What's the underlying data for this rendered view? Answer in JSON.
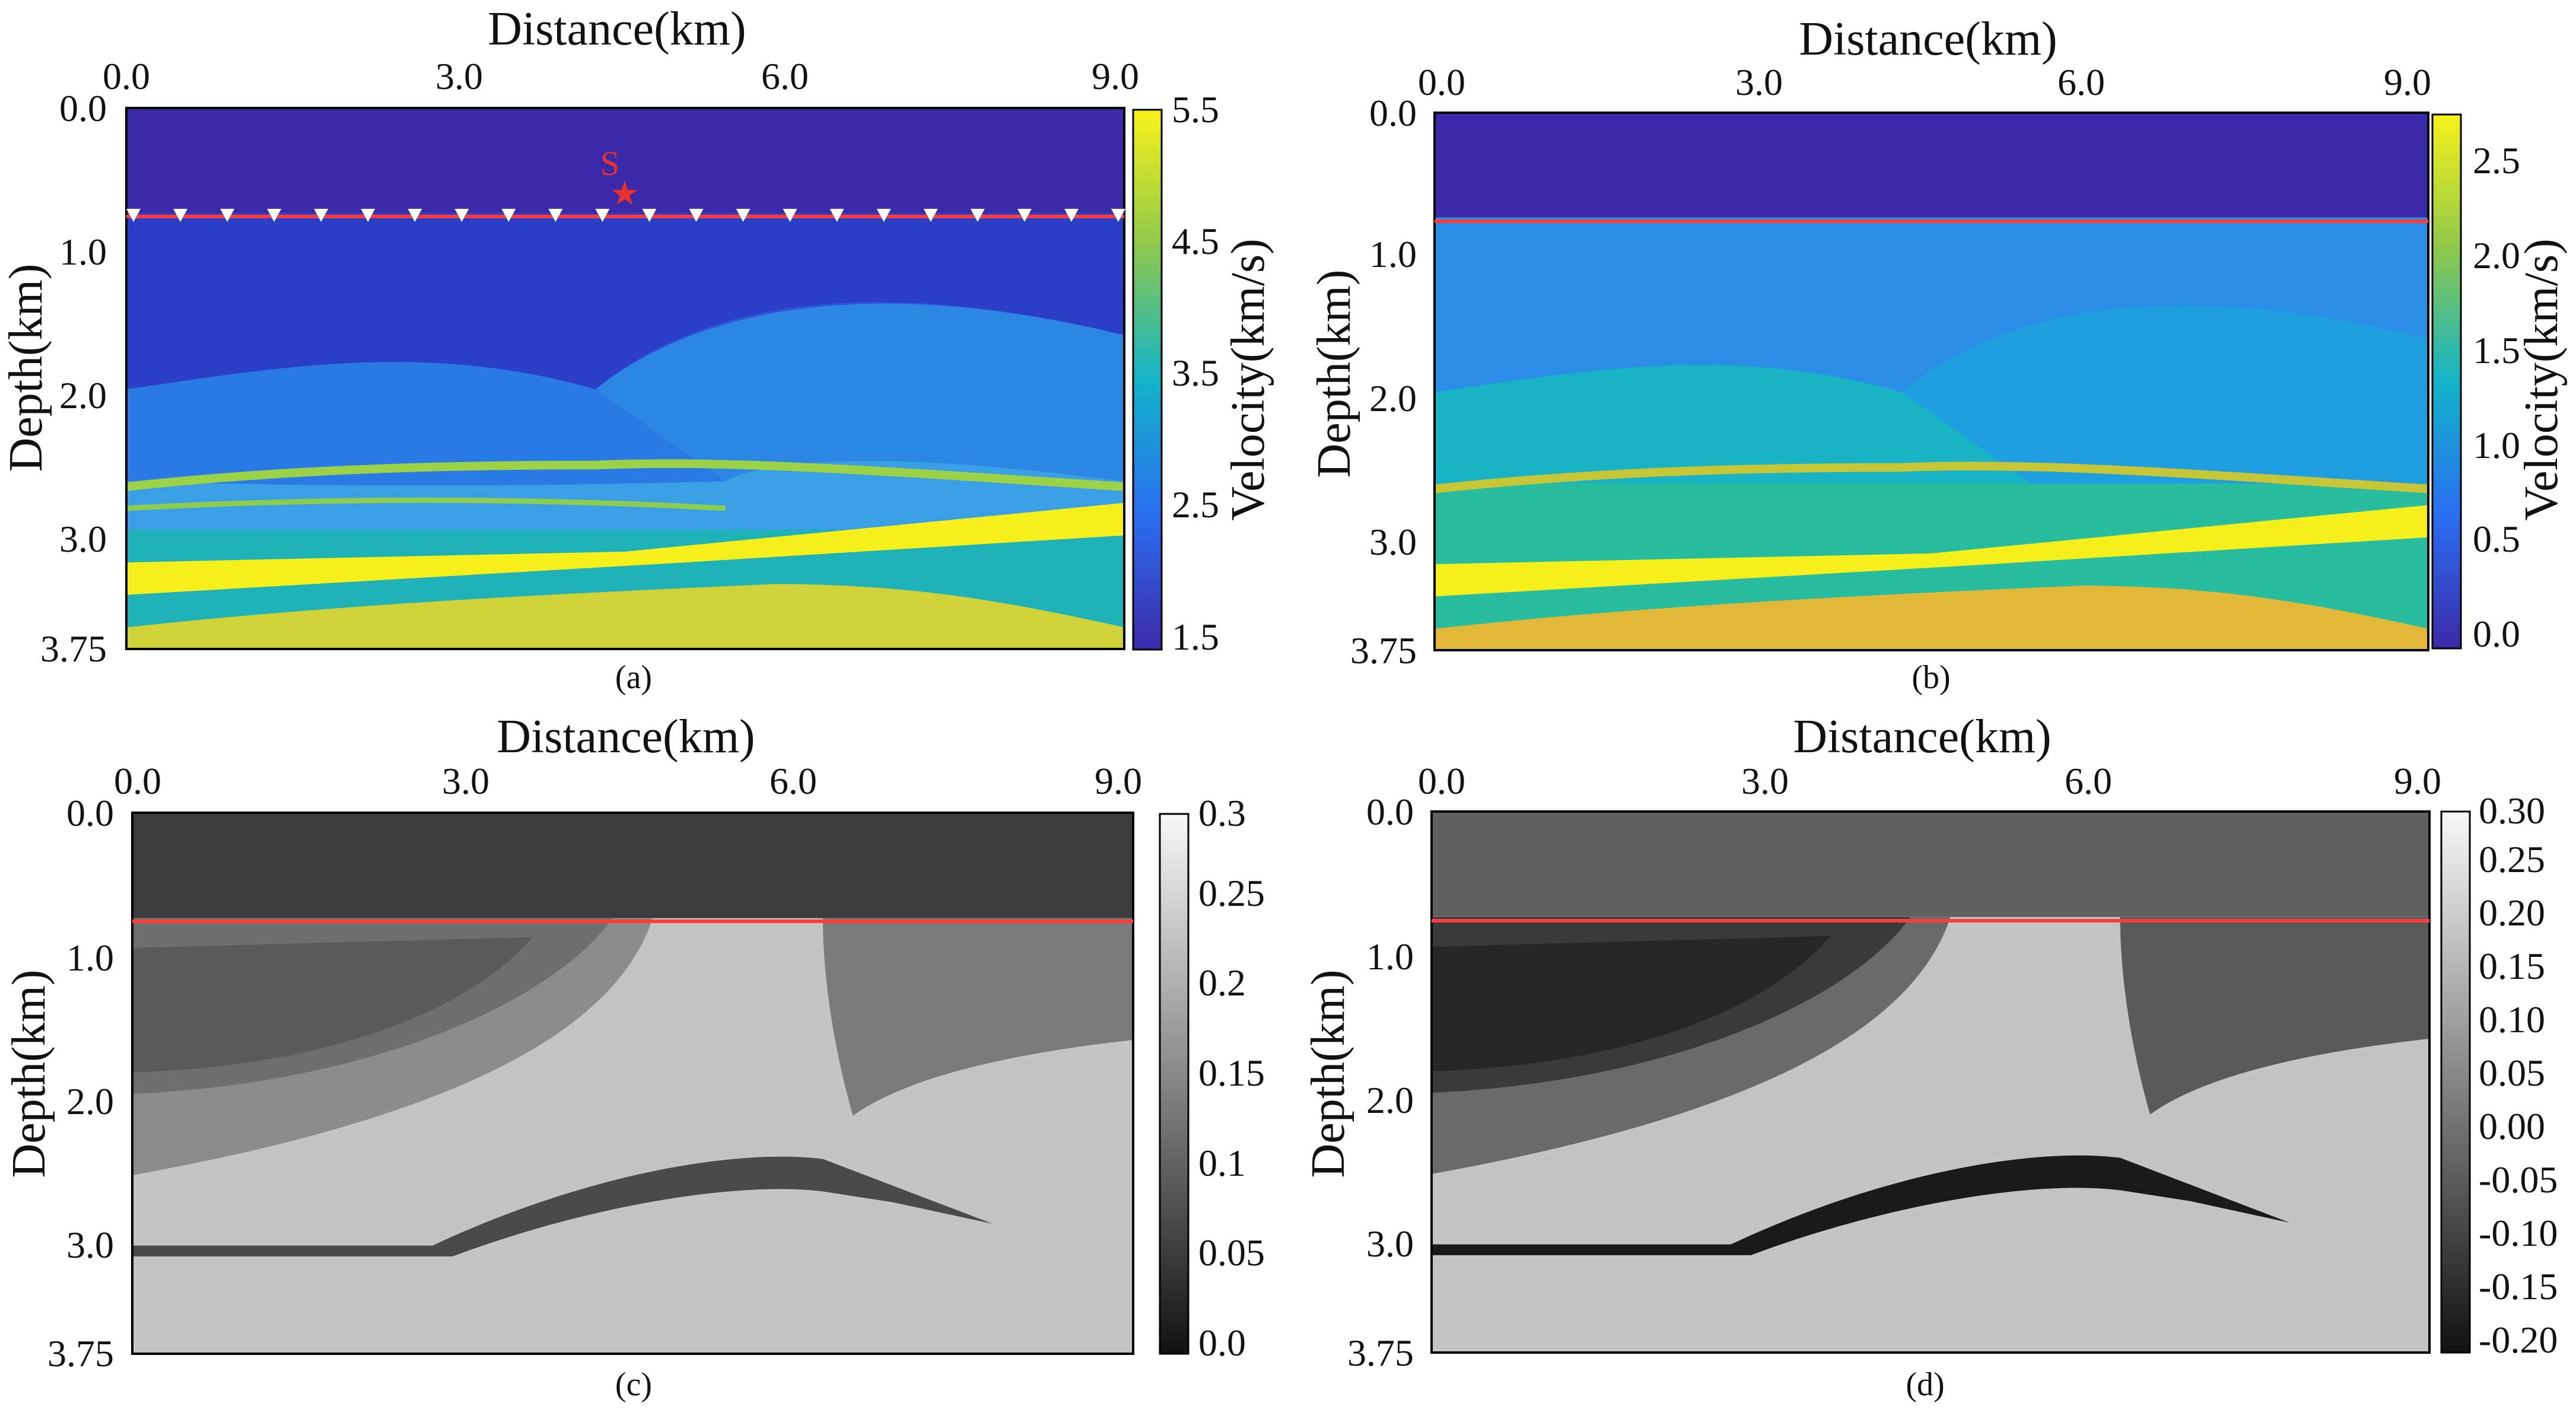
{
  "chart_data": [
    {
      "type": "heatmap",
      "caption": "(a)",
      "top_title": "Distance(km)",
      "ylabel": "Depth(km)",
      "xticks": [
        "0.0",
        "3.0",
        "6.0",
        "9.0"
      ],
      "yticks": [
        "0.0",
        "1.0",
        "2.0",
        "3.0",
        "3.75"
      ],
      "xlim": [
        0,
        9.0
      ],
      "ylim": [
        0,
        3.75
      ],
      "colormap": "viridis",
      "colorbar_label": "Velocity(km/s)",
      "colorbar_ticks": [
        "1.5",
        "2.5",
        "3.5",
        "4.5",
        "5.5"
      ],
      "colorbar_range": [
        1.5,
        5.5
      ],
      "interface_depth_km": 0.73,
      "source_label": "S",
      "source_x_km": 4.5,
      "source_depth_km": 0.6,
      "receiver_count": 22
    },
    {
      "type": "heatmap",
      "caption": "(b)",
      "top_title": "Distance(km)",
      "ylabel": "Depth(km)",
      "xticks": [
        "0.0",
        "3.0",
        "6.0",
        "9.0"
      ],
      "yticks": [
        "0.0",
        "1.0",
        "2.0",
        "3.0",
        "3.75"
      ],
      "xlim": [
        0,
        9.0
      ],
      "ylim": [
        0,
        3.75
      ],
      "colormap": "viridis",
      "colorbar_label": "Velocity(km/s)",
      "colorbar_ticks": [
        "0.0",
        "0.5",
        "1.0",
        "1.5",
        "2.0",
        "2.5"
      ],
      "colorbar_range": [
        0.0,
        2.75
      ],
      "interface_depth_km": 0.73
    },
    {
      "type": "heatmap",
      "caption": "(c)",
      "top_title": "Distance(km)",
      "ylabel": "Depth(km)",
      "xticks": [
        "0.0",
        "3.0",
        "6.0",
        "9.0"
      ],
      "yticks": [
        "0.0",
        "1.0",
        "2.0",
        "3.0",
        "3.75"
      ],
      "xlim": [
        0,
        9.0
      ],
      "ylim": [
        0,
        3.75
      ],
      "colormap": "gray",
      "colorbar_label": "",
      "colorbar_ticks": [
        "0.0",
        "0.05",
        "0.1",
        "0.15",
        "0.2",
        "0.25",
        "0.3"
      ],
      "colorbar_range": [
        0.0,
        0.3
      ],
      "interface_depth_km": 0.73
    },
    {
      "type": "heatmap",
      "caption": "(d)",
      "top_title": "Distance(km)",
      "ylabel": "Depth(km)",
      "xticks": [
        "0.0",
        "3.0",
        "6.0",
        "9.0"
      ],
      "yticks": [
        "0.0",
        "1.0",
        "2.0",
        "3.0",
        "3.75"
      ],
      "xlim": [
        0,
        9.0
      ],
      "ylim": [
        0,
        3.75
      ],
      "colormap": "gray",
      "colorbar_label": "",
      "colorbar_ticks": [
        "-0.20",
        "-0.15",
        "-0.10",
        "-0.05",
        "0.00",
        "0.05",
        "0.10",
        "0.15",
        "0.20",
        "0.25",
        "0.30"
      ],
      "colorbar_range": [
        -0.2,
        0.3
      ],
      "interface_depth_km": 0.73
    }
  ],
  "colors": {
    "interface": "#ff3b3b",
    "source": "#e8302c",
    "receiver": "#ffffff"
  }
}
